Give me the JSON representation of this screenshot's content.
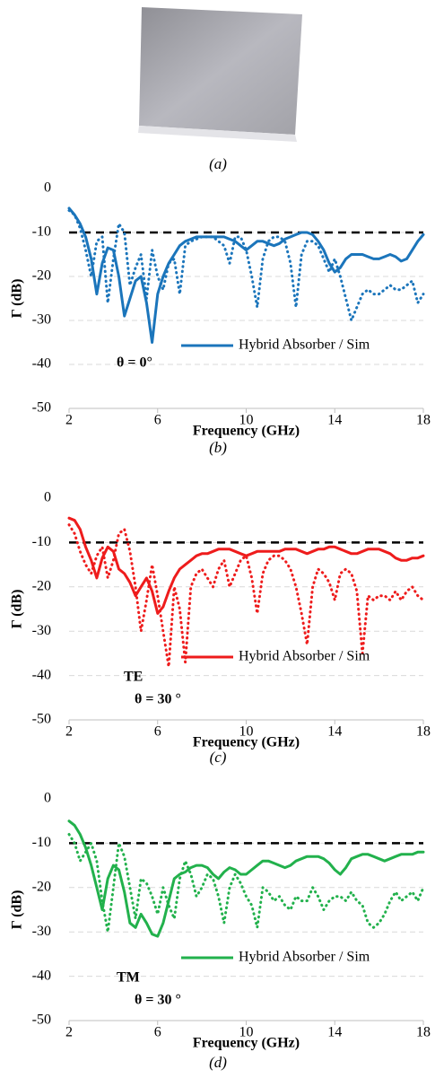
{
  "photo_caption": "(a)",
  "chart_data": [
    {
      "type": "line",
      "caption": "(b)",
      "xlabel": "Frequency (GHz)",
      "ylabel": "Γ (dB)",
      "xlim": [
        2,
        18
      ],
      "ylim": [
        -50,
        0
      ],
      "xticks": [
        2,
        6,
        10,
        14,
        18
      ],
      "yticks": [
        0,
        -10,
        -20,
        -30,
        -40,
        -50
      ],
      "grid": true,
      "reference_line": -10,
      "legend": "lower right",
      "annotations": [
        {
          "text": "θ = 0°",
          "color": "#1f3fbf"
        }
      ],
      "x": [
        2,
        2.25,
        2.5,
        2.75,
        3,
        3.25,
        3.5,
        3.75,
        4,
        4.25,
        4.5,
        4.75,
        5,
        5.25,
        5.5,
        5.75,
        6,
        6.25,
        6.5,
        6.75,
        7,
        7.25,
        7.5,
        7.75,
        8,
        8.25,
        8.5,
        8.75,
        9,
        9.25,
        9.5,
        9.75,
        10,
        10.25,
        10.5,
        10.75,
        11,
        11.25,
        11.5,
        11.75,
        12,
        12.25,
        12.5,
        12.75,
        13,
        13.25,
        13.5,
        13.75,
        14,
        14.25,
        14.5,
        14.75,
        15,
        15.25,
        15.5,
        15.75,
        16,
        16.25,
        16.5,
        16.75,
        17,
        17.25,
        17.5,
        17.75,
        18
      ],
      "series": [
        {
          "name": "Hybrid Absorber / Sim",
          "color": "#1b75bb",
          "style": "solid",
          "values": [
            -4.5,
            -6,
            -8,
            -11,
            -16,
            -24,
            -17,
            -13.5,
            -14,
            -20,
            -29,
            -25,
            -21,
            -20,
            -26,
            -35,
            -24,
            -20,
            -17,
            -15,
            -13,
            -12,
            -11.5,
            -11,
            -11,
            -11,
            -11,
            -11,
            -11,
            -11.5,
            -12,
            -13,
            -14,
            -13,
            -12,
            -12,
            -12.5,
            -13,
            -12.5,
            -11.5,
            -11,
            -10.5,
            -10,
            -10,
            -10.5,
            -12,
            -14,
            -17,
            -19,
            -18,
            -16,
            -15,
            -15,
            -15,
            -15.5,
            -16,
            -16,
            -15.5,
            -15,
            -15.5,
            -16.5,
            -16,
            -14,
            -12,
            -10.5
          ]
        },
        {
          "color": "#1b75bb",
          "style": "dotted",
          "values": [
            -5,
            -6,
            -9,
            -14,
            -20,
            -12,
            -11,
            -26,
            -16,
            -8,
            -10,
            -22,
            -18,
            -15,
            -25,
            -14,
            -20,
            -23,
            -17,
            -16,
            -24,
            -13,
            -12,
            -11.5,
            -11,
            -11,
            -11,
            -12,
            -13,
            -17,
            -11,
            -11,
            -14,
            -20,
            -27,
            -16,
            -12,
            -11,
            -11,
            -12,
            -17,
            -27,
            -15,
            -12,
            -12,
            -13,
            -16,
            -19,
            -16,
            -20,
            -25,
            -30,
            -27,
            -24,
            -23,
            -24,
            -24,
            -23,
            -22,
            -23,
            -23,
            -22,
            -21,
            -26,
            -24
          ]
        }
      ]
    },
    {
      "type": "line",
      "caption": "(c)",
      "xlabel": "Frequency (GHz)",
      "ylabel": "Γ (dB)",
      "xlim": [
        2,
        18
      ],
      "ylim": [
        -50,
        0
      ],
      "xticks": [
        2,
        6,
        10,
        14,
        18
      ],
      "yticks": [
        0,
        -10,
        -20,
        -30,
        -40,
        -50
      ],
      "grid": true,
      "reference_line": -10,
      "legend": "lower right",
      "annotations": [
        {
          "text": "TE",
          "color": "#ee1c1c"
        },
        {
          "text": "θ = 30 °",
          "color": "#1f3fbf"
        }
      ],
      "x": [
        2,
        2.25,
        2.5,
        2.75,
        3,
        3.25,
        3.5,
        3.75,
        4,
        4.25,
        4.5,
        4.75,
        5,
        5.25,
        5.5,
        5.75,
        6,
        6.25,
        6.5,
        6.75,
        7,
        7.25,
        7.5,
        7.75,
        8,
        8.25,
        8.5,
        8.75,
        9,
        9.25,
        9.5,
        9.75,
        10,
        10.25,
        10.5,
        10.75,
        11,
        11.25,
        11.5,
        11.75,
        12,
        12.25,
        12.5,
        12.75,
        13,
        13.25,
        13.5,
        13.75,
        14,
        14.25,
        14.5,
        14.75,
        15,
        15.25,
        15.5,
        15.75,
        16,
        16.25,
        16.5,
        16.75,
        17,
        17.25,
        17.5,
        17.75,
        18
      ],
      "series": [
        {
          "name": "Hybrid Absorber / Sim",
          "color": "#ee1c1c",
          "style": "solid",
          "values": [
            -4.5,
            -5,
            -7,
            -11,
            -14,
            -18,
            -13.5,
            -11,
            -12,
            -16,
            -17,
            -19,
            -22,
            -20,
            -18,
            -21,
            -26,
            -24.5,
            -21,
            -18,
            -16,
            -15,
            -14,
            -13,
            -12.5,
            -12.5,
            -12,
            -11.5,
            -11.5,
            -11.5,
            -12,
            -12.5,
            -13,
            -12.5,
            -12,
            -12,
            -12,
            -12,
            -12,
            -11.5,
            -11.5,
            -11.5,
            -12,
            -12.5,
            -12,
            -11.5,
            -11.5,
            -11,
            -11,
            -11.5,
            -12,
            -12.5,
            -12.5,
            -12,
            -11.5,
            -11.5,
            -11.5,
            -12,
            -12.5,
            -13.5,
            -14,
            -14,
            -13.5,
            -13.5,
            -13
          ]
        },
        {
          "color": "#ee1c1c",
          "style": "dotted",
          "values": [
            -6,
            -8,
            -12,
            -15,
            -17,
            -13,
            -11,
            -18,
            -14,
            -8,
            -7,
            -12,
            -20,
            -30,
            -23,
            -15,
            -22,
            -30,
            -38,
            -20,
            -25,
            -37,
            -20,
            -17,
            -16,
            -18,
            -20,
            -16,
            -14,
            -20,
            -17,
            -14,
            -13,
            -18,
            -26,
            -17,
            -14,
            -13,
            -13,
            -14,
            -16,
            -20,
            -26,
            -33,
            -20,
            -16,
            -17,
            -19,
            -23,
            -17,
            -16,
            -17,
            -21,
            -35,
            -22,
            -23,
            -22,
            -22,
            -23,
            -21,
            -23,
            -21,
            -20,
            -22,
            -23
          ]
        }
      ]
    },
    {
      "type": "line",
      "caption": "(d)",
      "xlabel": "Frequency (GHz)",
      "ylabel": "Γ (dB)",
      "xlim": [
        2,
        18
      ],
      "ylim": [
        -50,
        0
      ],
      "xticks": [
        2,
        6,
        10,
        14,
        18
      ],
      "yticks": [
        0,
        -10,
        -20,
        -30,
        -40,
        -50
      ],
      "grid": true,
      "reference_line": -10,
      "legend": "lower right",
      "annotations": [
        {
          "text": "TM",
          "color": "#22b14c"
        },
        {
          "text": "θ = 30 °",
          "color": "#1f3fbf"
        }
      ],
      "x": [
        2,
        2.25,
        2.5,
        2.75,
        3,
        3.25,
        3.5,
        3.75,
        4,
        4.25,
        4.5,
        4.75,
        5,
        5.25,
        5.5,
        5.75,
        6,
        6.25,
        6.5,
        6.75,
        7,
        7.25,
        7.5,
        7.75,
        8,
        8.25,
        8.5,
        8.75,
        9,
        9.25,
        9.5,
        9.75,
        10,
        10.25,
        10.5,
        10.75,
        11,
        11.25,
        11.5,
        11.75,
        12,
        12.25,
        12.5,
        12.75,
        13,
        13.25,
        13.5,
        13.75,
        14,
        14.25,
        14.5,
        14.75,
        15,
        15.25,
        15.5,
        15.75,
        16,
        16.25,
        16.5,
        16.75,
        17,
        17.25,
        17.5,
        17.75,
        18
      ],
      "series": [
        {
          "name": "Hybrid Absorber / Sim",
          "color": "#22b14c",
          "style": "solid",
          "values": [
            -5,
            -6,
            -8,
            -11,
            -15,
            -20,
            -25,
            -18,
            -15,
            -16,
            -21,
            -28,
            -29,
            -26,
            -28,
            -30.5,
            -31,
            -28,
            -23,
            -18,
            -17,
            -16.5,
            -15.5,
            -15,
            -15,
            -15.5,
            -17,
            -18,
            -16.5,
            -15.5,
            -16,
            -17,
            -17,
            -16,
            -15,
            -14,
            -14,
            -14.5,
            -15,
            -15.5,
            -15,
            -14,
            -13.5,
            -13,
            -13,
            -13,
            -13.5,
            -14.5,
            -16,
            -17,
            -15.5,
            -13.5,
            -13,
            -12.5,
            -12.5,
            -13,
            -13.5,
            -14,
            -13.5,
            -13,
            -12.5,
            -12.5,
            -12.5,
            -12,
            -12
          ]
        },
        {
          "color": "#22b14c",
          "style": "dotted",
          "values": [
            -8,
            -10,
            -14,
            -12,
            -10,
            -14,
            -23,
            -30,
            -20,
            -10,
            -13,
            -20,
            -27,
            -18,
            -19,
            -22,
            -26,
            -20,
            -24,
            -27,
            -18,
            -14,
            -17,
            -22,
            -20,
            -17,
            -18,
            -22,
            -28,
            -20,
            -17,
            -19,
            -22,
            -24,
            -29,
            -20,
            -21,
            -23,
            -22,
            -24,
            -25,
            -22,
            -23,
            -23,
            -20,
            -22,
            -25,
            -23,
            -22,
            -22,
            -23,
            -21,
            -23,
            -24,
            -28,
            -29,
            -28,
            -26,
            -23,
            -21,
            -23,
            -22,
            -21,
            -23,
            -20
          ]
        }
      ]
    }
  ]
}
